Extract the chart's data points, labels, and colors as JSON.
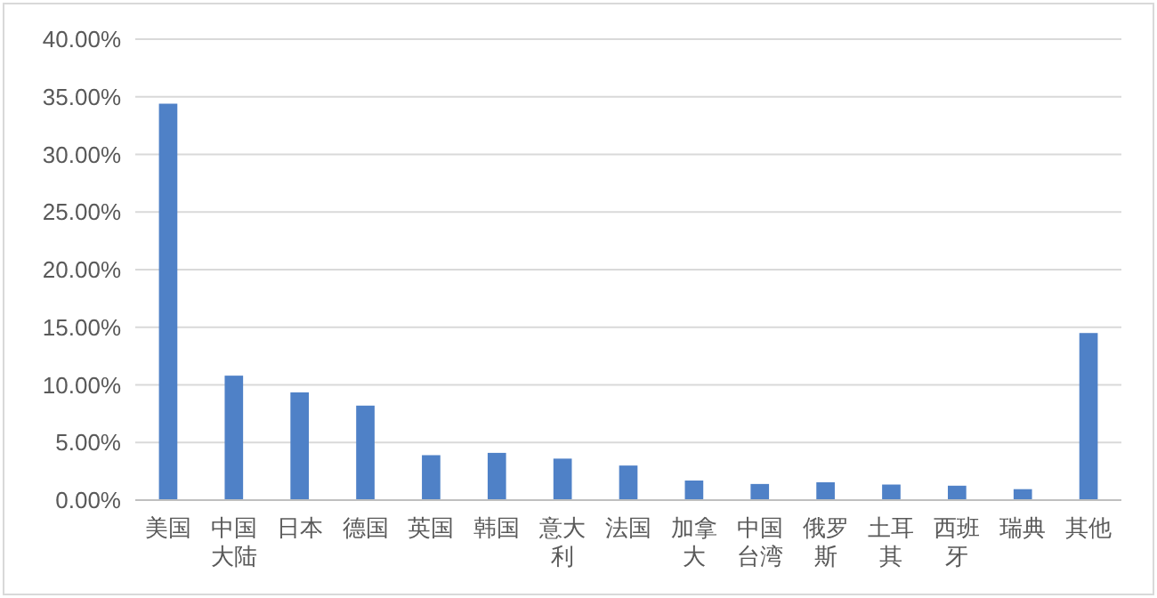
{
  "chart_data": {
    "type": "bar",
    "categories": [
      "美国",
      "中国大陆",
      "日本",
      "德国",
      "英国",
      "韩国",
      "意大利",
      "法国",
      "加拿大",
      "中国台湾",
      "俄罗斯",
      "土耳其",
      "西班牙",
      "瑞典",
      "其他"
    ],
    "values": [
      34.4,
      10.8,
      9.35,
      8.2,
      3.9,
      4.1,
      3.6,
      3.0,
      1.7,
      1.4,
      1.55,
      1.35,
      1.25,
      0.95,
      14.5
    ],
    "color": "#4f81c7",
    "ylim": [
      0,
      40
    ],
    "yticks": [
      {
        "value": 0,
        "label": "0.00%"
      },
      {
        "value": 5,
        "label": "5.00%"
      },
      {
        "value": 10,
        "label": "10.00%"
      },
      {
        "value": 15,
        "label": "15.00%"
      },
      {
        "value": 20,
        "label": "20.00%"
      },
      {
        "value": 25,
        "label": "25.00%"
      },
      {
        "value": 30,
        "label": "30.00%"
      },
      {
        "value": 35,
        "label": "35.00%"
      },
      {
        "value": 40,
        "label": "40.00%"
      }
    ],
    "grid": "y"
  }
}
